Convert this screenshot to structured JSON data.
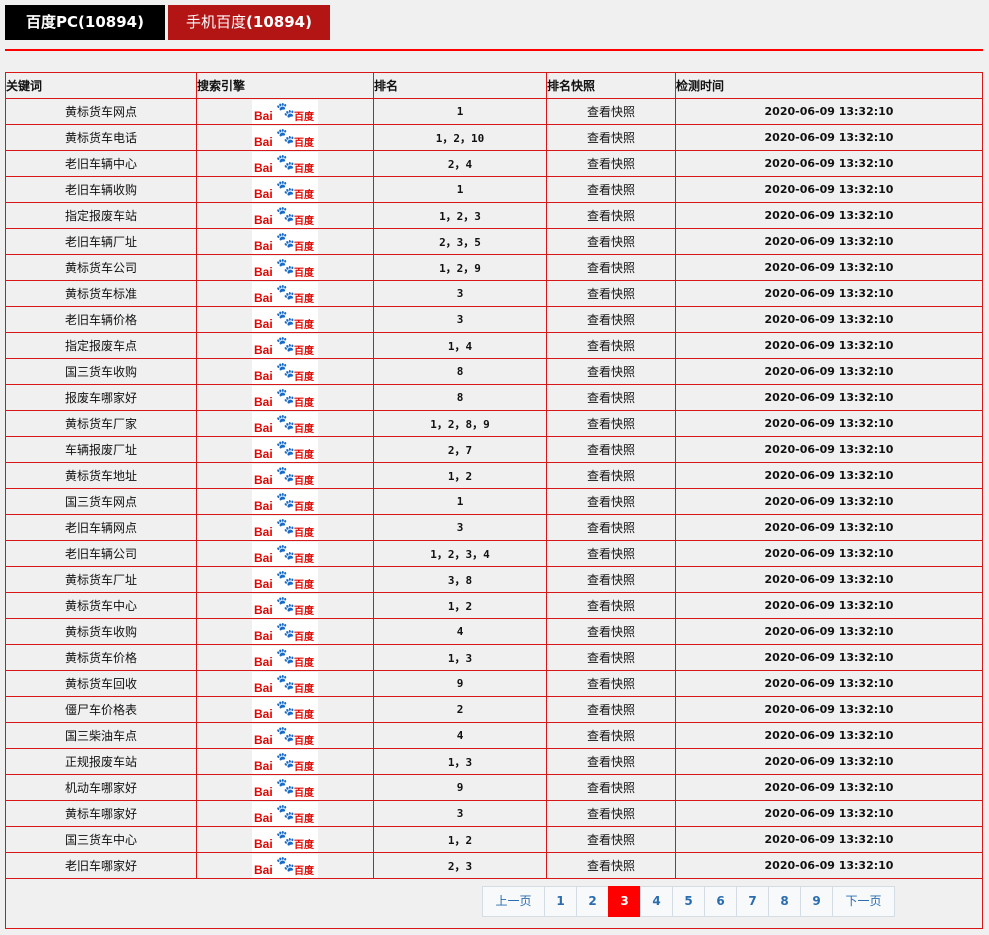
{
  "tabs": [
    {
      "label": "百度PC(10894)"
    },
    {
      "label_prefix": "手机百度",
      "label_count": "(10894)"
    }
  ],
  "table": {
    "headers": [
      "关键词",
      "搜索引擎",
      "排名",
      "排名快照",
      "检测时间"
    ],
    "engine_logo": {
      "text_left": "Bai",
      "text_mid": "du",
      "text_right": "百度",
      "colors": {
        "red": "#e10601",
        "blue": "#2932e1"
      }
    },
    "rows": [
      [
        "黄标货车网点",
        "1"
      ],
      [
        "黄标货车电话",
        "1，2，10"
      ],
      [
        "老旧车辆中心",
        "2，4"
      ],
      [
        "老旧车辆收购",
        "1"
      ],
      [
        "指定报废车站",
        "1，2，3"
      ],
      [
        "老旧车辆厂址",
        "2，3，5"
      ],
      [
        "黄标货车公司",
        "1，2，9"
      ],
      [
        "黄标货车标准",
        "3"
      ],
      [
        "老旧车辆价格",
        "3"
      ],
      [
        "指定报废车点",
        "1，4"
      ],
      [
        "国三货车收购",
        "8"
      ],
      [
        "报废车哪家好",
        "8"
      ],
      [
        "黄标货车厂家",
        "1，2，8，9"
      ],
      [
        "车辆报废厂址",
        "2，7"
      ],
      [
        "黄标货车地址",
        "1，2"
      ],
      [
        "国三货车网点",
        "1"
      ],
      [
        "老旧车辆网点",
        "3"
      ],
      [
        "老旧车辆公司",
        "1，2，3，4"
      ],
      [
        "黄标货车厂址",
        "3，8"
      ],
      [
        "黄标货车中心",
        "1，2"
      ],
      [
        "黄标货车收购",
        "4"
      ],
      [
        "黄标货车价格",
        "1，3"
      ],
      [
        "黄标货车回收",
        "9"
      ],
      [
        "僵尸车价格表",
        "2"
      ],
      [
        "国三柴油车点",
        "4"
      ],
      [
        "正规报废车站",
        "1，3"
      ],
      [
        "机动车哪家好",
        "9"
      ],
      [
        "黄标车哪家好",
        "3"
      ],
      [
        "国三货车中心",
        "1，2"
      ],
      [
        "老旧车哪家好",
        "2，3"
      ]
    ],
    "snapshot_label": "查看快照",
    "check_time": "2020-06-09 13:32:10"
  },
  "pagination": {
    "prev": "上一页",
    "next": "下一页",
    "pages": [
      "1",
      "2",
      "3",
      "4",
      "5",
      "6",
      "7",
      "8",
      "9"
    ],
    "current": "3"
  },
  "colors": {
    "accent": "#ff0000",
    "tab_active": "#b31515",
    "tab_inactive": "#000000"
  }
}
